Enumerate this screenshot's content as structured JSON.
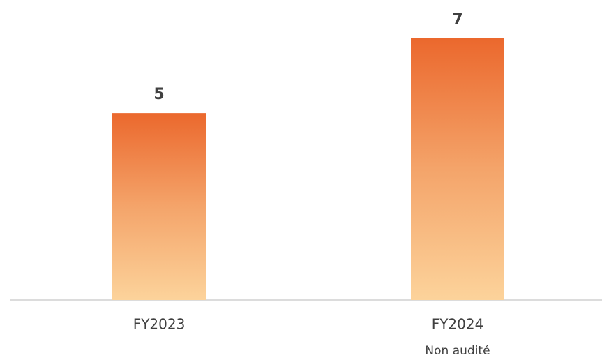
{
  "chart_data": {
    "type": "bar",
    "categories": [
      "FY2023",
      "FY2024"
    ],
    "category_notes": [
      null,
      "Non audité"
    ],
    "values": [
      5,
      7
    ],
    "gradient": [
      "#eb682d",
      "#f4a46a",
      "#fcd39b"
    ]
  }
}
